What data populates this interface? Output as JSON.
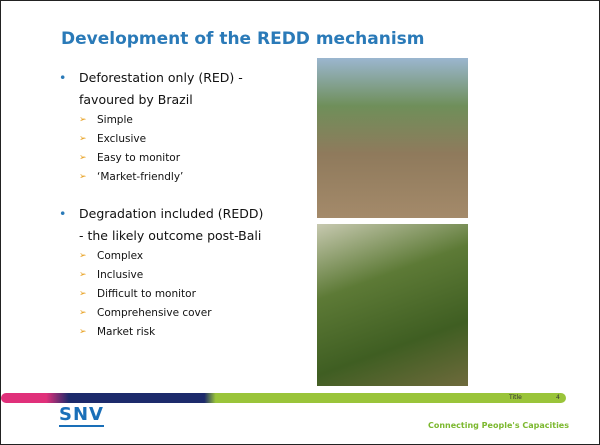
{
  "header": {
    "title": "Development of the REDD mechanism"
  },
  "bullets": [
    {
      "label": "Deforestation only (RED) - favoured by Brazil",
      "items": [
        "Simple",
        "Exclusive",
        "Easy to monitor",
        "‘Market-friendly’"
      ]
    },
    {
      "label": "Degradation included (REDD) - the likely outcome post-Bali",
      "items": [
        "Complex",
        "Inclusive",
        "Difficult to monitor",
        "Comprehensive cover",
        "Market risk"
      ]
    }
  ],
  "footer": {
    "title": "Title",
    "page": "4",
    "logo": "SNV",
    "tagline": "Connecting People's Capacities"
  }
}
